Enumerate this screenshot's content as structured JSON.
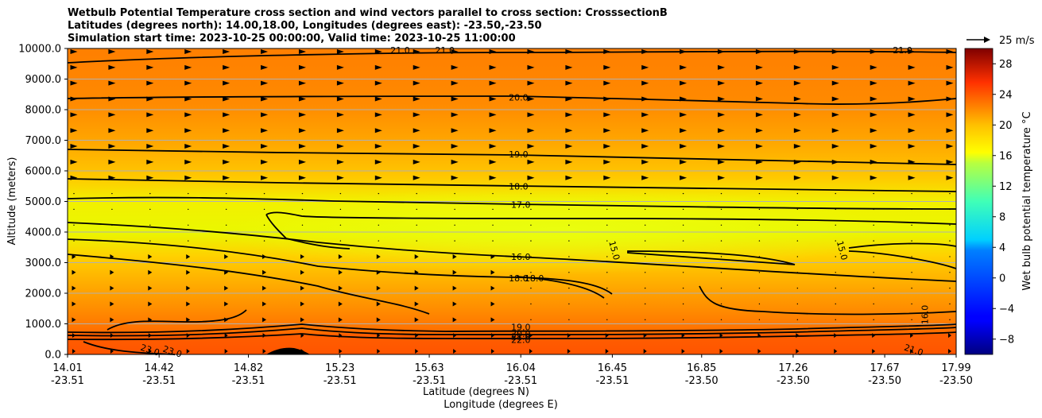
{
  "title_lines": [
    "Wetbulb Potential Temperature cross section and wind vectors parallel to cross section: CrosssectionB",
    "Latitudes (degrees north): 14.00,18.00, Longitudes (degrees east): -23.50,-23.50",
    "Simulation start time: 2023-10-25 00:00:00, Valid time: 2023-10-25 11:00:00"
  ],
  "quiver_key_label": "25 m/s",
  "chart_data": {
    "type": "heatmap",
    "title": "Wetbulb Potential Temperature cross section and wind vectors parallel to cross section: CrosssectionB",
    "xlabel_primary": "Latitude (degrees N)",
    "xlabel_secondary": "Longitude (degrees E)",
    "ylabel": "Altitude (meters)",
    "colorbar_label": "Wet bulb potential temperature $^\\circ$C",
    "colorbar_label_display": "Wet bulb potential temperature °C",
    "colormap": "jet",
    "ylim": [
      0,
      10000
    ],
    "clim": [
      -10,
      30
    ],
    "y_ticks": [
      "0.0",
      "1000.0",
      "2000.0",
      "3000.0",
      "4000.0",
      "5000.0",
      "6000.0",
      "7000.0",
      "8000.0",
      "9000.0",
      "10000.0"
    ],
    "x_ticks": [
      {
        "lat": "14.01",
        "lon": "-23.51"
      },
      {
        "lat": "14.42",
        "lon": "-23.51"
      },
      {
        "lat": "14.82",
        "lon": "-23.51"
      },
      {
        "lat": "15.23",
        "lon": "-23.51"
      },
      {
        "lat": "15.63",
        "lon": "-23.51"
      },
      {
        "lat": "16.04",
        "lon": "-23.51"
      },
      {
        "lat": "16.45",
        "lon": "-23.51"
      },
      {
        "lat": "16.85",
        "lon": "-23.50"
      },
      {
        "lat": "17.26",
        "lon": "-23.50"
      },
      {
        "lat": "17.67",
        "lon": "-23.50"
      },
      {
        "lat": "17.99",
        "lon": "-23.50"
      }
    ],
    "colorbar_ticks": [
      "−8",
      "−4",
      "0",
      "4",
      "8",
      "12",
      "16",
      "20",
      "24",
      "28"
    ],
    "contour_labels": [
      {
        "text": "21.0",
        "lat": 15.5,
        "alt": 9950
      },
      {
        "text": "21.0",
        "lat": 15.7,
        "alt": 9950
      },
      {
        "text": "21.0",
        "lat": 17.75,
        "alt": 9950
      },
      {
        "text": "20.0",
        "lat": 16.03,
        "alt": 8400
      },
      {
        "text": "19.0",
        "lat": 16.03,
        "alt": 6550
      },
      {
        "text": "18.0",
        "lat": 16.03,
        "alt": 5500
      },
      {
        "text": "17.0",
        "lat": 16.04,
        "alt": 4900
      },
      {
        "text": "16.0",
        "lat": 16.04,
        "alt": 3200
      },
      {
        "text": "15.0",
        "lat": 16.46,
        "alt": 3400
      },
      {
        "text": "15.0",
        "lat": 17.48,
        "alt": 3400
      },
      {
        "text": "18.0",
        "lat": 16.03,
        "alt": 2500
      },
      {
        "text": "18.0",
        "lat": 16.1,
        "alt": 2500
      },
      {
        "text": "16.0",
        "lat": 17.85,
        "alt": 1300
      },
      {
        "text": "19.0",
        "lat": 16.04,
        "alt": 900
      },
      {
        "text": "20.0",
        "lat": 16.04,
        "alt": 680
      },
      {
        "text": "21.0",
        "lat": 16.04,
        "alt": 580
      },
      {
        "text": "22.0",
        "lat": 16.04,
        "alt": 480
      },
      {
        "text": "23.0",
        "lat": 14.38,
        "alt": 150
      },
      {
        "text": "23.0",
        "lat": 14.48,
        "alt": 100
      },
      {
        "text": "21.0",
        "lat": 17.8,
        "alt": 150
      }
    ],
    "wind_direction": "parallel to cross section, toward increasing latitude",
    "grid": true
  }
}
